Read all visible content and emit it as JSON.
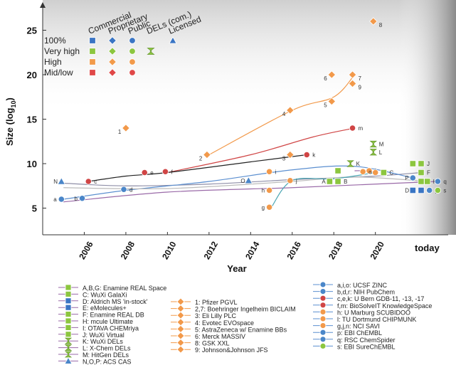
{
  "chart_data": {
    "type": "scatter",
    "title": "",
    "xlabel": "Year",
    "ylabel": "Size (log10)",
    "ylim": [
      2,
      28
    ],
    "xlim": [
      2004,
      2023.5
    ],
    "x_ticks": [
      "2006",
      "2008",
      "2010",
      "2012",
      "2014",
      "2016",
      "2018",
      "2020"
    ],
    "today_label": "today",
    "y_ticks": [
      5,
      10,
      15,
      20,
      25
    ],
    "grid": false,
    "legend_top": {
      "columns": [
        "Commercial",
        "Proprietary",
        "Public",
        "DELs (com.)",
        "Licensed"
      ],
      "rows": [
        "100%",
        "Very high",
        "High",
        "Mid/low"
      ],
      "row_colors": [
        "#3a75c4",
        "#8cc63f",
        "#f29a4a",
        "#e04848"
      ]
    },
    "points": [
      {
        "l": "a",
        "x": 2004.9,
        "y": 6.0,
        "c": "#4a86c9",
        "s": "circle"
      },
      {
        "l": "b",
        "x": 2005.9,
        "y": 6.1,
        "c": "#4a86c9",
        "s": "circle"
      },
      {
        "l": "c",
        "x": 2006.2,
        "y": 8.0,
        "c": "#d04545",
        "s": "circle"
      },
      {
        "l": "d",
        "x": 2007.9,
        "y": 7.1,
        "c": "#4a86c9",
        "s": "circle"
      },
      {
        "l": "e",
        "x": 2008.9,
        "y": 9.0,
        "c": "#d04545",
        "s": "circle"
      },
      {
        "l": "f",
        "x": 2009.9,
        "y": 9.1,
        "c": "#d04545",
        "s": "circle"
      },
      {
        "l": "k",
        "x": 2016.7,
        "y": 11.0,
        "c": "#d04545",
        "s": "circle"
      },
      {
        "l": "m",
        "x": 2018.9,
        "y": 14.0,
        "c": "#d04545",
        "s": "circle"
      },
      {
        "l": "N",
        "x": 2004.9,
        "y": 8.0,
        "c": "#4a86c9",
        "s": "triangle"
      },
      {
        "l": "O",
        "x": 2013.9,
        "y": 8.1,
        "c": "#4a86c9",
        "s": "triangle"
      },
      {
        "l": "1",
        "x": 2008.0,
        "y": 14.0,
        "c": "#f2994a",
        "s": "diamond"
      },
      {
        "l": "2",
        "x": 2011.9,
        "y": 11.0,
        "c": "#f2994a",
        "s": "diamond"
      },
      {
        "l": "3",
        "x": 2015.9,
        "y": 11.0,
        "c": "#f2994a",
        "s": "diamond"
      },
      {
        "l": "4",
        "x": 2015.9,
        "y": 16.0,
        "c": "#f2994a",
        "s": "diamond"
      },
      {
        "l": "5",
        "x": 2017.9,
        "y": 17.0,
        "c": "#f2994a",
        "s": "diamond"
      },
      {
        "l": "6",
        "x": 2017.9,
        "y": 20.0,
        "c": "#f2994a",
        "s": "diamond"
      },
      {
        "l": "7",
        "x": 2018.9,
        "y": 20.0,
        "c": "#f2994a",
        "s": "diamond"
      },
      {
        "l": "8",
        "x": 2019.9,
        "y": 26.0,
        "c": "#f2994a",
        "s": "diamond"
      },
      {
        "l": "9",
        "x": 2018.9,
        "y": 19.0,
        "c": "#f2994a",
        "s": "diamond"
      },
      {
        "l": "g",
        "x": 2014.9,
        "y": 5.1,
        "c": "#f2994a",
        "s": "circle"
      },
      {
        "l": "h",
        "x": 2014.9,
        "y": 7.0,
        "c": "#f2994a",
        "s": "circle"
      },
      {
        "l": "i",
        "x": 2014.9,
        "y": 9.1,
        "c": "#f2994a",
        "s": "circle"
      },
      {
        "l": "j",
        "x": 2015.9,
        "y": 8.1,
        "c": "#f2994a",
        "s": "circle"
      },
      {
        "l": "l",
        "x": 2019.7,
        "y": 9.2,
        "c": "#f2994a",
        "s": "circle"
      },
      {
        "l": "n",
        "x": 2020.0,
        "y": 9.0,
        "c": "#f2994a",
        "s": "circle"
      },
      {
        "l": "o",
        "x": 2019.4,
        "y": 9.1,
        "c": "#f2994a",
        "s": "circle"
      },
      {
        "l": "A",
        "x": 2017.8,
        "y": 8.0,
        "c": "#8cc63f",
        "s": "square"
      },
      {
        "l": "B",
        "x": 2018.2,
        "y": 8.0,
        "c": "#8cc63f",
        "s": "square"
      },
      {
        "l": "C",
        "x": 2020.4,
        "y": 9.0,
        "c": "#8cc63f",
        "s": "square"
      },
      {
        "l": "K",
        "x": 2018.8,
        "y": 10.0,
        "c": "#8cc63f",
        "s": "hourglass"
      },
      {
        "l": "L",
        "x": 2019.9,
        "y": 11.3,
        "c": "#8cc63f",
        "s": "hourglass"
      },
      {
        "l": "M",
        "x": 2019.9,
        "y": 12.2,
        "c": "#8cc63f",
        "s": "hourglass"
      },
      {
        "l": "G",
        "x": 2021.8,
        "y": 10.0,
        "c": "#8cc63f",
        "s": "square"
      },
      {
        "l": "J",
        "x": 2022.2,
        "y": 10.0,
        "c": "#8cc63f",
        "s": "square"
      },
      {
        "l": "P",
        "x": 2021.8,
        "y": 8.4,
        "c": "#4a86c9",
        "s": "circle"
      },
      {
        "l": "F",
        "x": 2022.2,
        "y": 9.0,
        "c": "#8cc63f",
        "s": "square"
      },
      {
        "l": "I",
        "x": 2022.2,
        "y": 8.0,
        "c": "#8cc63f",
        "s": "square"
      },
      {
        "l": "H",
        "x": 2022.5,
        "y": 8.0,
        "c": "#8cc63f",
        "s": "square"
      },
      {
        "l": "D",
        "x": 2021.8,
        "y": 7.0,
        "c": "#3a75c4",
        "s": "square"
      },
      {
        "l": "E",
        "x": 2022.2,
        "y": 7.0,
        "c": "#3a75c4",
        "s": "square"
      },
      {
        "l": "p",
        "x": 2022.6,
        "y": 7.0,
        "c": "#4a86c9",
        "s": "circle"
      },
      {
        "l": "q",
        "x": 2023.0,
        "y": 8.0,
        "c": "#4a86c9",
        "s": "circle"
      },
      {
        "l": "s",
        "x": 2023.0,
        "y": 7.0,
        "c": "#8cc63f",
        "s": "circle"
      },
      {
        "l": "",
        "x": 2018.2,
        "y": 9.2,
        "c": "#8cc63f",
        "s": "square"
      }
    ],
    "lines": [
      {
        "c": "#f2994a",
        "pts": [
          [
            2012,
            11
          ],
          [
            2016,
            16
          ],
          [
            2018,
            17.5
          ],
          [
            2019,
            20
          ]
        ]
      },
      {
        "c": "#d04545",
        "pts": [
          [
            2010,
            9
          ],
          [
            2014,
            11
          ],
          [
            2017,
            13
          ],
          [
            2019,
            14
          ]
        ]
      },
      {
        "c": "#222222",
        "pts": [
          [
            2006.2,
            8
          ],
          [
            2008,
            8.6
          ],
          [
            2010,
            9
          ],
          [
            2014,
            10.2
          ],
          [
            2016.7,
            11
          ]
        ]
      },
      {
        "c": "#8f8fa8",
        "pts": [
          [
            2005,
            7.8
          ],
          [
            2008,
            7.5
          ],
          [
            2012,
            7.7
          ],
          [
            2016,
            8.2
          ],
          [
            2020,
            8.6
          ],
          [
            2022.2,
            9
          ]
        ]
      },
      {
        "c": "#5b8fd0",
        "pts": [
          [
            2005,
            6
          ],
          [
            2008,
            7
          ],
          [
            2012,
            8
          ],
          [
            2016,
            9.3
          ],
          [
            2019,
            9.7
          ],
          [
            2021.8,
            8.4
          ]
        ]
      },
      {
        "c": "#bbbbbb",
        "pts": [
          [
            2005,
            7.3
          ],
          [
            2010,
            7.2
          ],
          [
            2016,
            8.0
          ],
          [
            2019,
            8.5
          ],
          [
            2022.5,
            8
          ]
        ]
      },
      {
        "c": "#9a6aa8",
        "pts": [
          [
            2005,
            5.7
          ],
          [
            2010,
            6.8
          ],
          [
            2016,
            7.3
          ],
          [
            2020,
            7.7
          ],
          [
            2023,
            8
          ]
        ]
      },
      {
        "c": "#4aa6b3",
        "pts": [
          [
            2015,
            5.1
          ],
          [
            2016,
            8.1
          ],
          [
            2018,
            8.3
          ],
          [
            2020,
            9.0
          ]
        ]
      },
      {
        "c": "#9a6aa8",
        "pts": [
          [
            2019,
            9.2
          ],
          [
            2019.7,
            9.2
          ],
          [
            2020,
            9
          ]
        ]
      }
    ],
    "bottom_legend": {
      "col1": [
        {
          "label": "A,B,G: Enamine REAL Space",
          "c": "#8cc63f",
          "s": "square"
        },
        {
          "label": "C: WuXi GalaXi",
          "c": "#8cc63f",
          "s": "square"
        },
        {
          "label": "D: Aldrich MS 'in-stock'",
          "c": "#3a75c4",
          "s": "square"
        },
        {
          "label": "E: eMolecules+",
          "c": "#3a75c4",
          "s": "square"
        },
        {
          "label": "F: Enamine REAL DB",
          "c": "#8cc63f",
          "s": "square"
        },
        {
          "label": "H: mcule Ultimate",
          "c": "#8cc63f",
          "s": "square"
        },
        {
          "label": "I: OTAVA CHEMriya",
          "c": "#8cc63f",
          "s": "square"
        },
        {
          "label": "J: WuXi Virtual",
          "c": "#8cc63f",
          "s": "square"
        },
        {
          "label": "K: WuXi DELs",
          "c": "#8cc63f",
          "s": "hourglass"
        },
        {
          "label": "L: X-Chem DELs",
          "c": "#8cc63f",
          "s": "hourglass"
        },
        {
          "label": "M: HitGen DELs",
          "c": "#8cc63f",
          "s": "hourglass"
        },
        {
          "label": "N,O,P: ACS CAS",
          "c": "#4a86c9",
          "s": "triangle"
        }
      ],
      "col2": [
        {
          "label": "1: Pfizer PGVL",
          "c": "#f2994a",
          "s": "diamond"
        },
        {
          "label": "2,7: Boehringer Ingelheim BICLAIM",
          "c": "#f2994a",
          "s": "diamond"
        },
        {
          "label": "3: Eli Lilly PLC",
          "c": "#f2994a",
          "s": "diamond"
        },
        {
          "label": "4: Evotec EVOspace",
          "c": "#f2994a",
          "s": "diamond"
        },
        {
          "label": "5: AstraZeneca w/ Enamine BBs",
          "c": "#f2994a",
          "s": "diamond"
        },
        {
          "label": "6: Merck MASSIV",
          "c": "#f2994a",
          "s": "diamond"
        },
        {
          "label": "8: GSK XXL",
          "c": "#f2994a",
          "s": "diamond"
        },
        {
          "label": "9: Johnson&Johnson JFS",
          "c": "#f2994a",
          "s": "diamond"
        }
      ],
      "col3": [
        {
          "label": "a,i,o: UCSF ZINC",
          "c": "#4a86c9",
          "s": "circle"
        },
        {
          "label": "b,d,r: NIH PubChem",
          "c": "#4a86c9",
          "s": "circle"
        },
        {
          "label": "c,e,k: U Bern GDB-11, -13, -17",
          "c": "#d04545",
          "s": "circle"
        },
        {
          "label": "f,m: BioSolveIT KnowledgeSpace",
          "c": "#d04545",
          "s": "circle"
        },
        {
          "label": "h: U Marburg SCUBIDOO",
          "c": "#f2994a",
          "s": "circle"
        },
        {
          "label": "l: TU Dortmund CHIPMUNK",
          "c": "#f2994a",
          "s": "circle"
        },
        {
          "label": "g,j,n: NCI SAVI",
          "c": "#f2994a",
          "s": "circle"
        },
        {
          "label": "p: EBI ChEMBL",
          "c": "#4a86c9",
          "s": "circle"
        },
        {
          "label": "q: RSC ChemSpider",
          "c": "#4a86c9",
          "s": "circle"
        },
        {
          "label": "s: EBI SureChEMBL",
          "c": "#8cc63f",
          "s": "circle"
        }
      ]
    }
  }
}
